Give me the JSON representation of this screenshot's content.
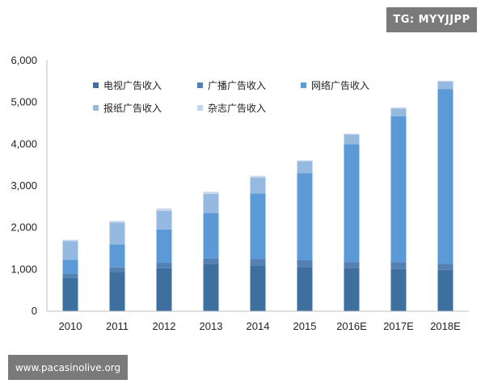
{
  "badge_text": "TG: MYYJJPP",
  "watermark_text": "www.pacasinolive.org",
  "chart_data": {
    "type": "bar",
    "stacked": true,
    "categories": [
      "2010",
      "2011",
      "2012",
      "2013",
      "2014",
      "2015",
      "2016E",
      "2017E",
      "2018E"
    ],
    "series": [
      {
        "name": "电视广告收入",
        "color": "#3d6f9f",
        "values": [
          800,
          940,
          1030,
          1130,
          1100,
          1060,
          1040,
          1010,
          990
        ]
      },
      {
        "name": "广播广告收入",
        "color": "#5580b3",
        "values": [
          90,
          110,
          130,
          130,
          150,
          160,
          130,
          160,
          150
        ]
      },
      {
        "name": "网络广告收入",
        "color": "#5b9ad6",
        "values": [
          340,
          550,
          800,
          1090,
          1570,
          2080,
          2830,
          3500,
          4180
        ]
      },
      {
        "name": "报纸广告收入",
        "color": "#96b9e0",
        "values": [
          450,
          520,
          440,
          460,
          380,
          290,
          230,
          180,
          180
        ]
      },
      {
        "name": "杂志广告收入",
        "color": "#c6d6ef",
        "values": [
          30,
          40,
          60,
          50,
          40,
          20,
          20,
          30,
          20
        ]
      }
    ],
    "yticks": [
      "0",
      "1,000",
      "2,000",
      "3,000",
      "4,000",
      "5,000",
      "6,000"
    ],
    "ylim": [
      0,
      6000
    ],
    "grid": false,
    "legend_position": "top-left"
  }
}
